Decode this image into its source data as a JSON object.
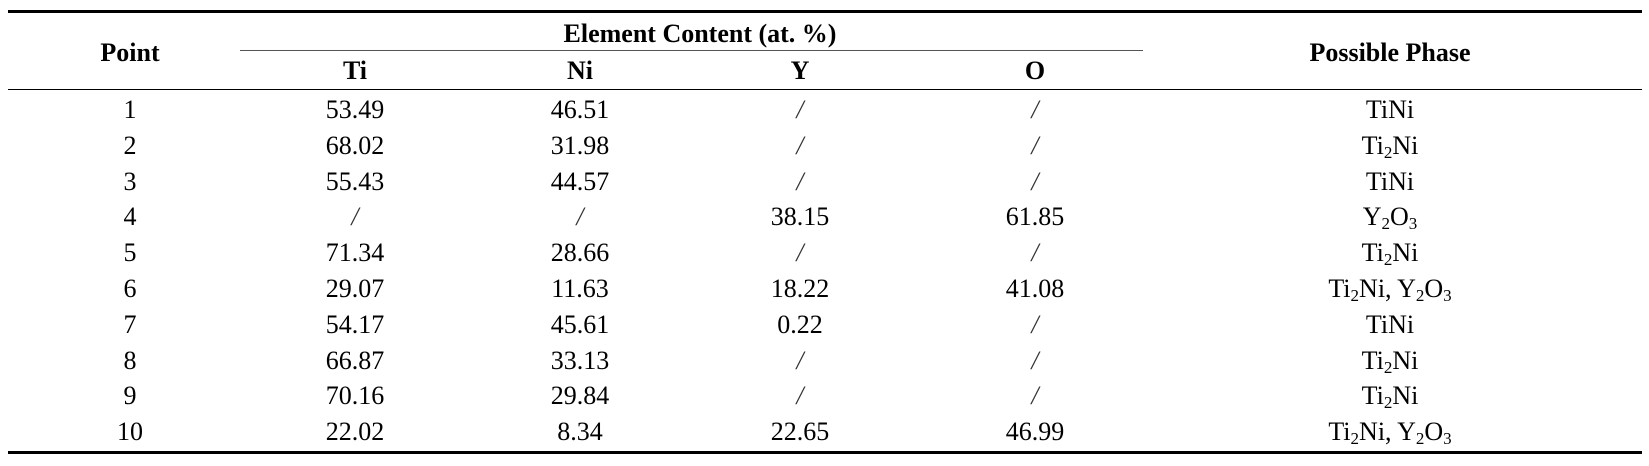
{
  "table": {
    "header": {
      "point": "Point",
      "group": "Element Content (at. %)",
      "ti": "Ti",
      "ni": "Ni",
      "y": "Y",
      "o": "O",
      "phase": "Possible Phase"
    },
    "rows": [
      {
        "point": "1",
        "ti": "53.49",
        "ni": "46.51",
        "y": "/",
        "o": "/",
        "phase": "TiNi"
      },
      {
        "point": "2",
        "ti": "68.02",
        "ni": "31.98",
        "y": "/",
        "o": "/",
        "phase": "Ti2Ni"
      },
      {
        "point": "3",
        "ti": "55.43",
        "ni": "44.57",
        "y": "/",
        "o": "/",
        "phase": "TiNi"
      },
      {
        "point": "4",
        "ti": "/",
        "ni": "/",
        "y": "38.15",
        "o": "61.85",
        "phase": "Y2O3"
      },
      {
        "point": "5",
        "ti": "71.34",
        "ni": "28.66",
        "y": "/",
        "o": "/",
        "phase": "Ti2Ni"
      },
      {
        "point": "6",
        "ti": "29.07",
        "ni": "11.63",
        "y": "18.22",
        "o": "41.08",
        "phase": "Ti2Ni, Y2O3"
      },
      {
        "point": "7",
        "ti": "54.17",
        "ni": "45.61",
        "y": "0.22",
        "o": "/",
        "phase": "TiNi"
      },
      {
        "point": "8",
        "ti": "66.87",
        "ni": "33.13",
        "y": "/",
        "o": "/",
        "phase": "Ti2Ni"
      },
      {
        "point": "9",
        "ti": "70.16",
        "ni": "29.84",
        "y": "/",
        "o": "/",
        "phase": "Ti2Ni"
      },
      {
        "point": "10",
        "ti": "22.02",
        "ni": "8.34",
        "y": "22.65",
        "o": "46.99",
        "phase": "Ti2Ni, Y2O3"
      }
    ]
  }
}
